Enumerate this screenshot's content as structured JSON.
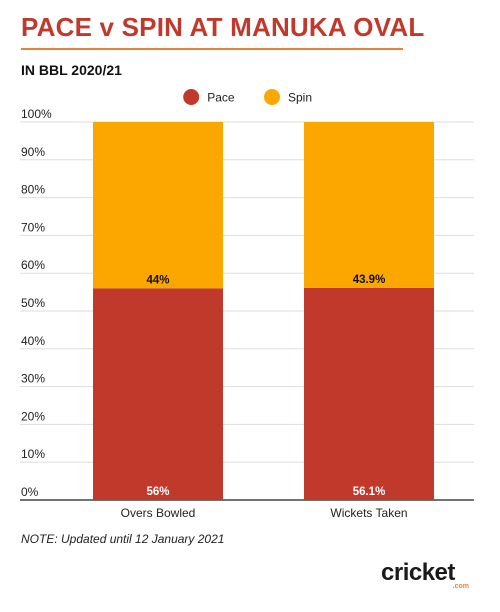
{
  "title": "PACE v SPIN AT MANUKA OVAL",
  "subtitle": "IN BBL 2020/21",
  "note": "NOTE: Updated until 12 January 2021",
  "logo": {
    "text": "cricket",
    "sub": ".com"
  },
  "colors": {
    "pace": "#c0392b",
    "spin": "#fca600",
    "title": "#c0392b",
    "rule": "#e8823a"
  },
  "chart_data": {
    "type": "bar",
    "stacked": true,
    "normalized_percent": true,
    "categories": [
      "Overs Bowled",
      "Wickets Taken"
    ],
    "series": [
      {
        "name": "Pace",
        "values": [
          56,
          56.1
        ],
        "labels": [
          "56%",
          "56.1%"
        ],
        "color": "#c0392b"
      },
      {
        "name": "Spin",
        "values": [
          44,
          43.9
        ],
        "labels": [
          "44%",
          "43.9%"
        ],
        "color": "#fca600"
      }
    ],
    "yticks": [
      "0%",
      "10%",
      "20%",
      "30%",
      "40%",
      "50%",
      "60%",
      "70%",
      "80%",
      "90%",
      "100%"
    ],
    "ylim": [
      0,
      100
    ],
    "legend": "top-center",
    "grid": true
  }
}
